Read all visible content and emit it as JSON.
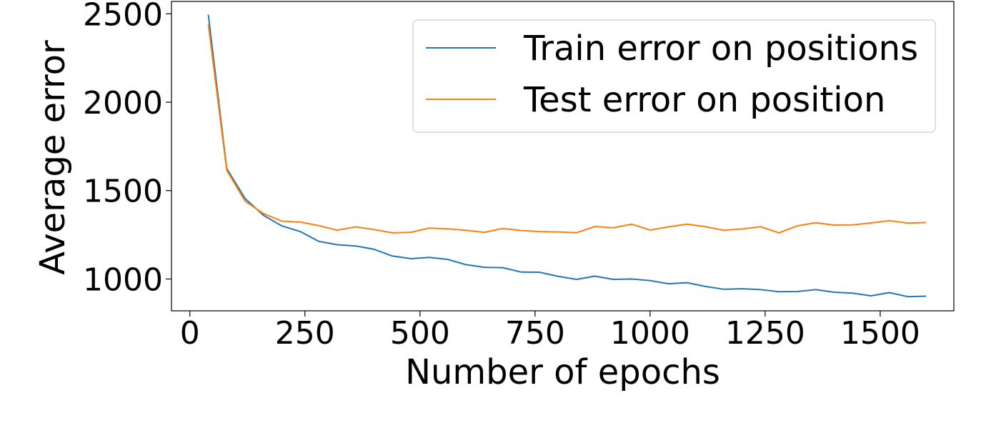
{
  "chart_data": {
    "type": "line",
    "xlabel": "Number of epochs",
    "ylabel": "Average error",
    "xlim": [
      -40,
      1660
    ],
    "ylim": [
      820,
      2570
    ],
    "xticks": [
      0,
      250,
      500,
      750,
      1000,
      1250,
      1500
    ],
    "yticks": [
      1000,
      1500,
      2000,
      2500
    ],
    "grid": false,
    "legend_position": "top-right",
    "x": [
      40,
      80,
      120,
      160,
      200,
      240,
      280,
      320,
      360,
      400,
      440,
      480,
      520,
      560,
      600,
      640,
      680,
      720,
      760,
      800,
      840,
      880,
      920,
      960,
      1000,
      1040,
      1080,
      1120,
      1160,
      1200,
      1240,
      1280,
      1320,
      1360,
      1400,
      1440,
      1480,
      1520,
      1560,
      1600
    ],
    "series": [
      {
        "name": "Train error on positions",
        "color": "#1f77b4",
        "values": [
          2495,
          1625,
          1455,
          1360,
          1300,
          1268,
          1213,
          1194,
          1187,
          1168,
          1130,
          1115,
          1122,
          1111,
          1081,
          1066,
          1064,
          1039,
          1038,
          1015,
          998,
          1016,
          998,
          1000,
          991,
          973,
          979,
          958,
          942,
          945,
          940,
          928,
          929,
          940,
          925,
          920,
          905,
          923,
          900,
          903
        ]
      },
      {
        "name": "Test error on position",
        "color": "#ff7f0e",
        "values": [
          2440,
          1615,
          1440,
          1370,
          1327,
          1322,
          1302,
          1276,
          1295,
          1280,
          1261,
          1264,
          1288,
          1284,
          1275,
          1264,
          1286,
          1274,
          1268,
          1266,
          1262,
          1297,
          1290,
          1310,
          1277,
          1295,
          1310,
          1296,
          1276,
          1283,
          1296,
          1261,
          1301,
          1318,
          1305,
          1306,
          1317,
          1330,
          1316,
          1319
        ]
      }
    ]
  }
}
